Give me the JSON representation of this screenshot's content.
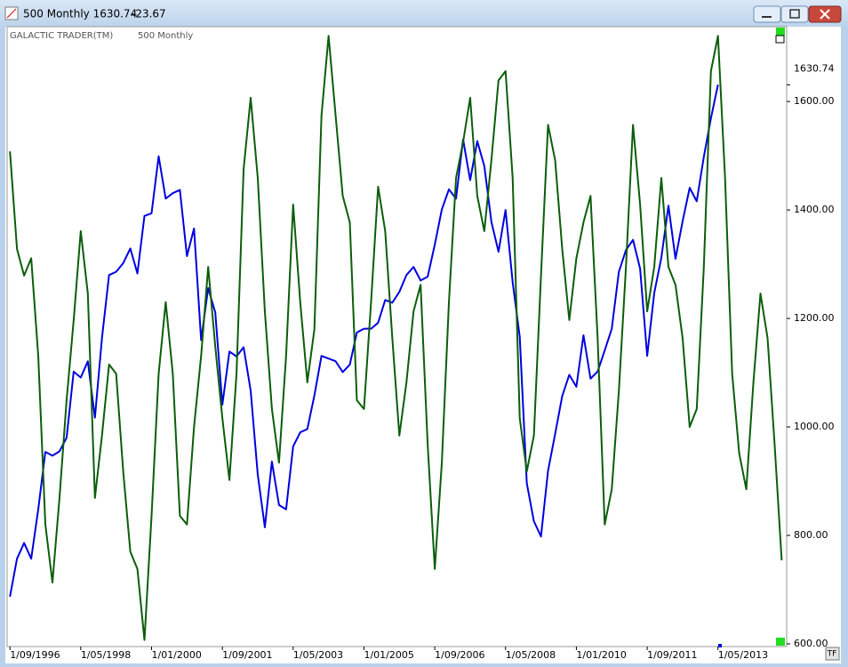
{
  "window": {
    "title": "500 Monthly 1630.74",
    "change": "-23.67",
    "button": "TF"
  },
  "chart_data": {
    "type": "line",
    "header": "GALACTIC TRADER(TM)",
    "subtitle": "500 Monthly",
    "last_value": {
      "value": 1630.74,
      "label": "1630.74"
    },
    "x": [
      1996.667,
      1996.833,
      1997,
      1997.167,
      1997.333,
      1997.5,
      1997.667,
      1997.833,
      1998,
      1998.167,
      1998.333,
      1998.5,
      1998.667,
      1998.833,
      1999,
      1999.167,
      1999.333,
      1999.5,
      1999.667,
      1999.833,
      2000,
      2000.167,
      2000.333,
      2000.5,
      2000.667,
      2000.833,
      2001,
      2001.167,
      2001.333,
      2001.5,
      2001.667,
      2001.833,
      2002,
      2002.167,
      2002.333,
      2002.5,
      2002.667,
      2002.833,
      2003,
      2003.167,
      2003.333,
      2003.5,
      2003.667,
      2003.833,
      2004,
      2004.167,
      2004.333,
      2004.5,
      2004.667,
      2004.833,
      2005,
      2005.167,
      2005.333,
      2005.5,
      2005.667,
      2005.833,
      2006,
      2006.167,
      2006.333,
      2006.5,
      2006.667,
      2006.833,
      2007,
      2007.167,
      2007.333,
      2007.5,
      2007.667,
      2007.833,
      2008,
      2008.167,
      2008.333,
      2008.5,
      2008.667,
      2008.833,
      2009,
      2009.167,
      2009.333,
      2009.5,
      2009.667,
      2009.833,
      2010,
      2010.167,
      2010.333,
      2010.5,
      2010.667,
      2010.833,
      2011,
      2011.167,
      2011.333,
      2011.5,
      2011.667,
      2011.833,
      2012,
      2012.167,
      2012.333,
      2012.5,
      2012.667,
      2012.833,
      2013,
      2013.167,
      2013.333,
      2013.5,
      2013.667,
      2013.833,
      2014,
      2014.167,
      2014.333,
      2014.5,
      2014.667,
      2014.833
    ],
    "series": [
      {
        "name": "500 Monthly",
        "color": "#0000e0",
        "values": [
          687,
          757,
          786,
          757,
          848,
          954,
          947,
          955,
          980,
          1102,
          1091,
          1121,
          1017,
          1164,
          1280,
          1286,
          1302,
          1329,
          1283,
          1389,
          1394,
          1499,
          1421,
          1431,
          1437,
          1315,
          1366,
          1160,
          1256,
          1211,
          1041,
          1139,
          1130,
          1147,
          1067,
          912,
          815,
          936,
          856,
          848,
          964,
          990,
          996,
          1058,
          1131,
          1126,
          1121,
          1101,
          1115,
          1174,
          1181,
          1181,
          1192,
          1234,
          1229,
          1249,
          1280,
          1295,
          1270,
          1277,
          1336,
          1401,
          1438,
          1421,
          1530,
          1455,
          1527,
          1481,
          1378,
          1323,
          1400,
          1267,
          1166,
          896,
          826,
          798,
          919,
          987,
          1057,
          1096,
          1074,
          1169,
          1089,
          1102,
          1141,
          1181,
          1286,
          1326,
          1345,
          1292,
          1131,
          1247,
          1312,
          1408,
          1310,
          1379,
          1441,
          1416,
          1498,
          1569,
          1631,
          null,
          null,
          null,
          null,
          null,
          null,
          null,
          null,
          null
        ]
      },
      {
        "color": "#0b5e0b",
        "values": [
          1508,
          1328,
          1279,
          1311,
          1131,
          820,
          713,
          869,
          1049,
          1197,
          1361,
          1246,
          869,
          984,
          1115,
          1098,
          918,
          770,
          738,
          607,
          836,
          1098,
          1230,
          1098,
          836,
          820,
          1000,
          1131,
          1295,
          1148,
          1016,
          902,
          1098,
          1475,
          1607,
          1459,
          1213,
          1033,
          934,
          1131,
          1410,
          1230,
          1082,
          1180,
          1574,
          1721,
          1574,
          1426,
          1377,
          1049,
          1033,
          1230,
          1443,
          1361,
          1164,
          984,
          1082,
          1213,
          1262,
          967,
          738,
          934,
          1230,
          1459,
          1525,
          1607,
          1426,
          1361,
          1492,
          1639,
          1656,
          1459,
          1016,
          918,
          984,
          1279,
          1557,
          1492,
          1328,
          1197,
          1311,
          1377,
          1426,
          1164,
          820,
          885,
          1066,
          1295,
          1557,
          1410,
          1213,
          1295,
          1459,
          1295,
          1262,
          1164,
          1000,
          1033,
          1295,
          1656,
          1721,
          1459,
          1098,
          951,
          885,
          1082,
          1246,
          1164,
          967,
          754
        ]
      }
    ],
    "xlim": [
      1996.6,
      2014.95
    ],
    "ylim": [
      595,
      1738
    ],
    "xticks": [
      {
        "value": 1996.667,
        "label": "1/09/1996"
      },
      {
        "value": 1998.333,
        "label": "1/05/1998"
      },
      {
        "value": 2000,
        "label": "1/01/2000"
      },
      {
        "value": 2001.667,
        "label": "1/09/2001"
      },
      {
        "value": 2003.333,
        "label": "1/05/2003"
      },
      {
        "value": 2005,
        "label": "1/01/2005"
      },
      {
        "value": 2006.667,
        "label": "1/09/2006"
      },
      {
        "value": 2008.333,
        "label": "1/05/2008"
      },
      {
        "value": 2010,
        "label": "1/01/2010"
      },
      {
        "value": 2011.667,
        "label": "1/09/2011"
      },
      {
        "value": 2013.333,
        "label": "1/05/2013"
      }
    ],
    "yticks": [
      {
        "value": 600,
        "label": "600.00"
      },
      {
        "value": 800,
        "label": "800.00"
      },
      {
        "value": 1000,
        "label": "1000.00"
      },
      {
        "value": 1200,
        "label": "1200.00"
      },
      {
        "value": 1400,
        "label": "1400.00"
      },
      {
        "value": 1600,
        "label": "1600.00"
      }
    ]
  }
}
